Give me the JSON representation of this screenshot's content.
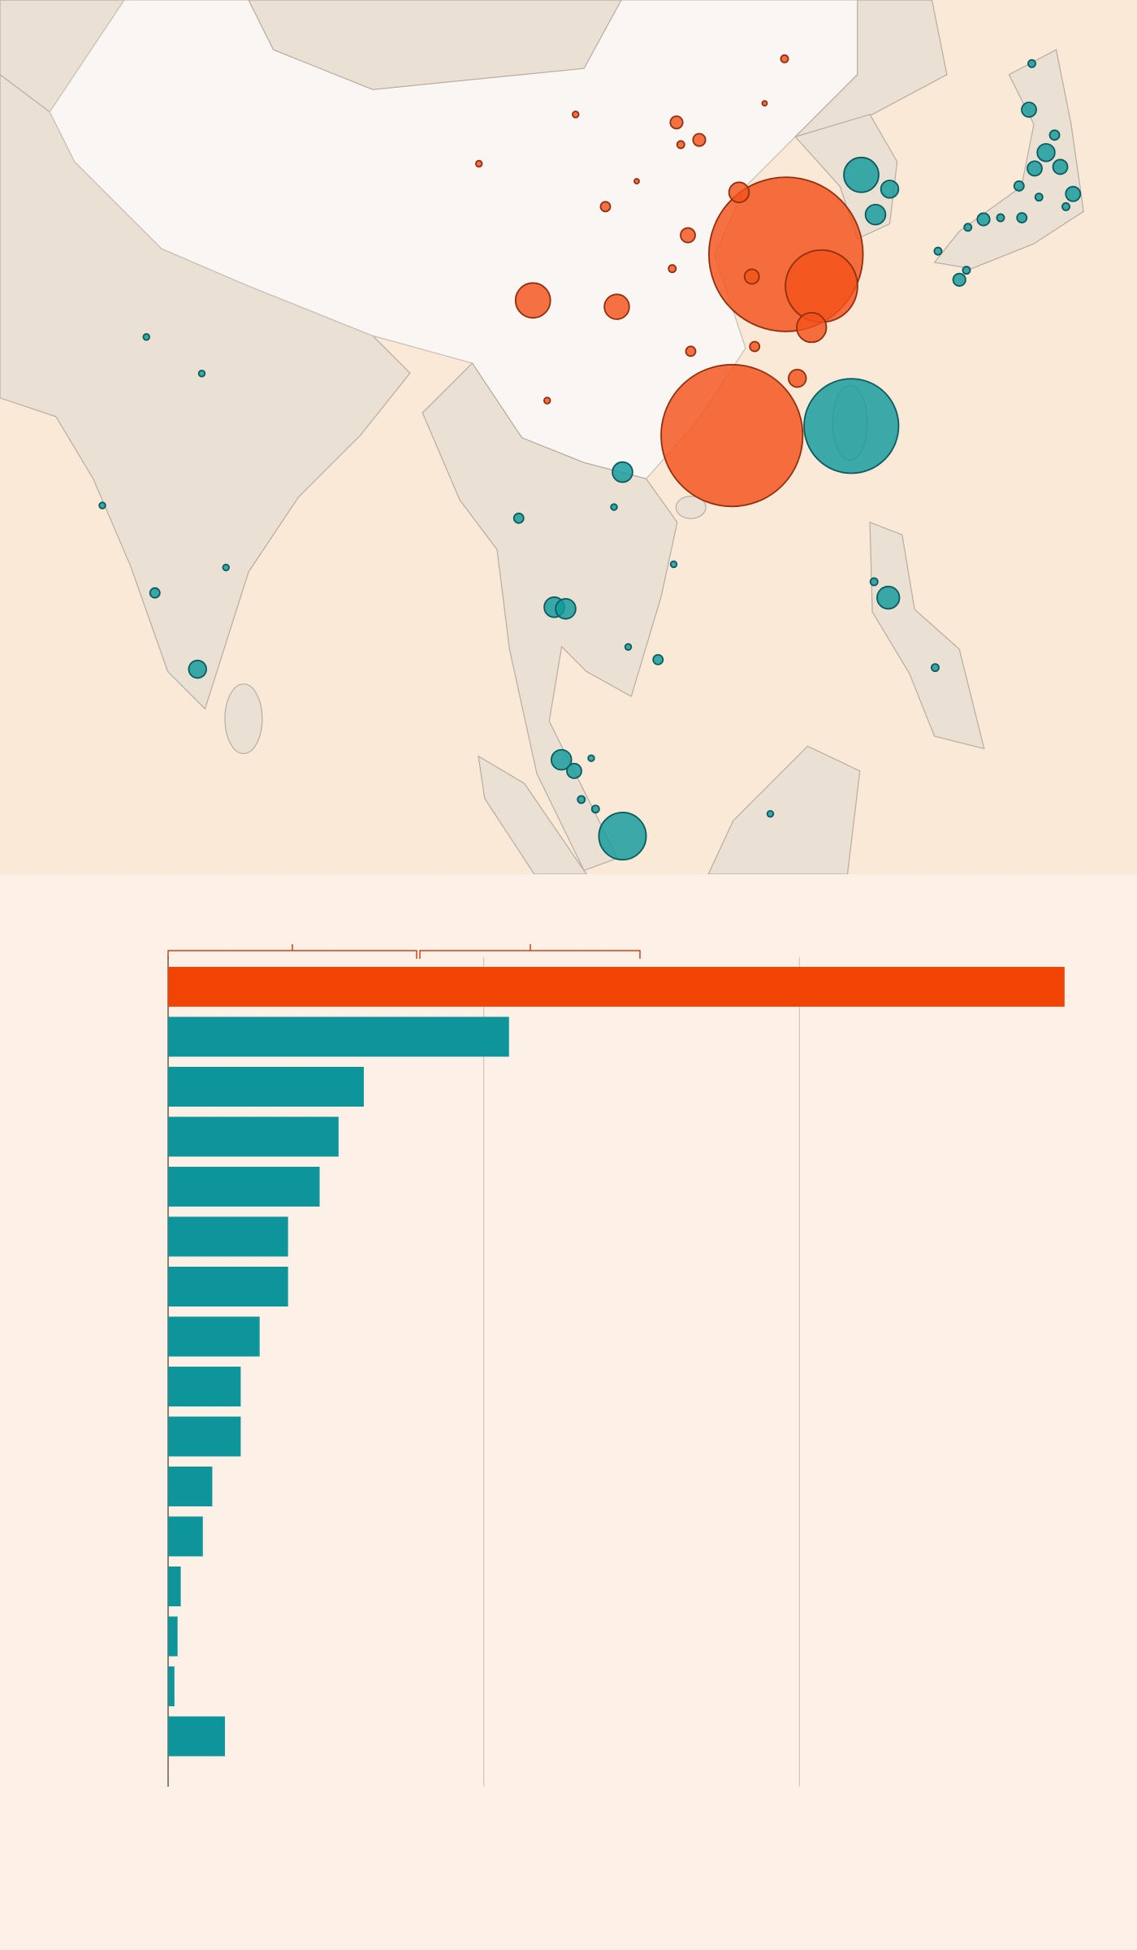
{
  "chart_data": [
    {
      "type": "bubble-map",
      "xlim": [
        70,
        150
      ],
      "ylim": [
        -5,
        50
      ],
      "series": [
        {
          "color": "#f4521b",
          "x": [
            125.3,
            121.5,
            127.8,
            107.5,
            113.4,
            127.1,
            122.0,
            118.4,
            126.1,
            122.9,
            117.6,
            119.2,
            112.6,
            123.1,
            118.6,
            117.3,
            117.9,
            125.2,
            110.5,
            103.7,
            114.8,
            123.8,
            108.5
          ],
          "values": [
            34.0,
            22.6,
            32.0,
            31.1,
            30.7,
            29.4,
            37.9,
            35.2,
            26.2,
            32.6,
            42.3,
            41.2,
            37.0,
            28.2,
            27.9,
            33.1,
            40.9,
            46.3,
            42.8,
            39.7,
            38.6,
            43.5,
            24.8
          ],
          "sizes": [
            100,
            84.5,
            21.9,
            5.1,
            2.6,
            3.7,
            1.7,
            0.9,
            1.3,
            0.9,
            0.65,
            0.65,
            0.4,
            0.4,
            0.4,
            0.23,
            0.23,
            0.23,
            0.16,
            0.16,
            0.1,
            0.1,
            0.16
          ]
        },
        {
          "color": "#129a9e",
          "x": [
            129.9,
            113.8,
            130.6,
            131.6,
            132.6,
            142.4,
            143.6,
            144.6,
            142.8,
            145.5,
            132.5,
            109.5,
            110.4,
            109.0,
            109.8,
            113.8,
            83.9,
            139.2,
            142.6,
            144.2,
            141.7,
            141.9,
            140.4,
            138.1,
            137.5,
            138.0,
            136.0,
            80.9,
            80.3,
            84.2,
            77.2,
            85.9,
            106.5,
            113.2,
            117.4,
            116.3,
            114.2,
            110.9,
            111.9,
            111.6,
            124.2,
            135.8,
            131.5,
            143.1,
            145.0
          ],
          "values": [
            23.2,
            -2.6,
            39.0,
            36.5,
            38.1,
            43.1,
            40.4,
            39.5,
            39.4,
            37.8,
            12.4,
            2.2,
            1.5,
            11.8,
            11.7,
            20.3,
            7.9,
            36.2,
            46.0,
            41.5,
            38.3,
            36.3,
            36.3,
            35.7,
            32.4,
            33.0,
            34.2,
            12.7,
            28.8,
            26.5,
            18.2,
            14.3,
            17.4,
            18.1,
            14.5,
            8.5,
            9.3,
            -0.3,
            -0.9,
            2.3,
            -1.2,
            8.0,
            13.4,
            37.6,
            37.0
          ],
          "sizes": [
            37.6,
            9.4,
            5.1,
            1.7,
            1.3,
            0.9,
            1.3,
            0.9,
            0.9,
            0.9,
            2.1,
            1.7,
            0.9,
            1.7,
            1.7,
            1.7,
            1.3,
            0.65,
            0.23,
            0.4,
            0.4,
            0.4,
            0.23,
            0.23,
            0.65,
            0.23,
            0.23,
            0.4,
            0.16,
            0.16,
            0.16,
            0.16,
            0.4,
            0.16,
            0.16,
            0.4,
            0.16,
            0.23,
            0.23,
            0.16,
            0.16,
            0.23,
            0.23,
            0.23,
            0.23
          ]
        }
      ]
    },
    {
      "type": "bar",
      "orientation": "horizontal",
      "values": [
        2.84,
        1.08,
        0.62,
        0.54,
        0.48,
        0.38,
        0.38,
        0.29,
        0.23,
        0.23,
        0.14,
        0.11,
        0.04,
        0.03,
        0.02,
        0.18
      ],
      "colors": [
        "#f24405",
        "#0e949b",
        "#0e949b",
        "#0e949b",
        "#0e949b",
        "#0e949b",
        "#0e949b",
        "#0e949b",
        "#0e949b",
        "#0e949b",
        "#0e949b",
        "#0e949b",
        "#0e949b",
        "#0e949b",
        "#0e949b",
        "#0e949b"
      ],
      "xlim": [
        0,
        3
      ],
      "xticks": [
        0,
        1,
        2
      ],
      "grid": true
    }
  ]
}
